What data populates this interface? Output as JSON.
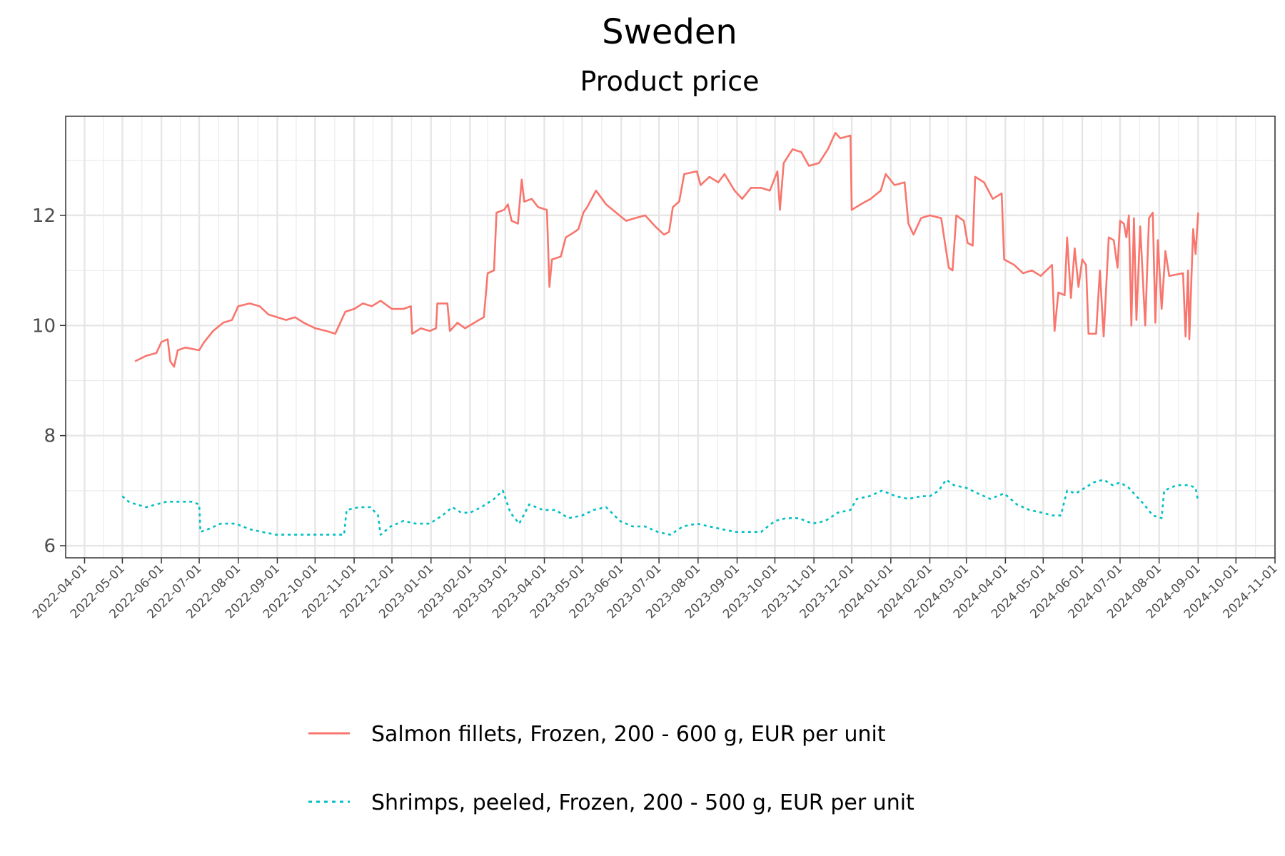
{
  "chart_data": {
    "type": "line",
    "title": "Sweden",
    "subtitle": "Product price",
    "xlabel": "",
    "ylabel": "",
    "x_ticks": [
      "2022-04-01",
      "2022-05-01",
      "2022-06-01",
      "2022-07-01",
      "2022-08-01",
      "2022-09-01",
      "2022-10-01",
      "2022-11-01",
      "2022-12-01",
      "2023-01-01",
      "2023-02-01",
      "2023-03-01",
      "2023-04-01",
      "2023-05-01",
      "2023-06-01",
      "2023-07-01",
      "2023-08-01",
      "2023-09-01",
      "2023-10-01",
      "2023-11-01",
      "2023-12-01",
      "2024-01-01",
      "2024-02-01",
      "2024-03-01",
      "2024-04-01",
      "2024-05-01",
      "2024-06-01",
      "2024-07-01",
      "2024-08-01",
      "2024-09-01",
      "2024-10-01",
      "2024-11-01"
    ],
    "y_ticks": [
      "6",
      "8",
      "10",
      "12"
    ],
    "xlim": [
      "2022-03-17",
      "2024-11-01"
    ],
    "ylim": [
      5.78,
      13.8
    ],
    "grid": true,
    "legend_position": "bottom",
    "series": [
      {
        "name": "Salmon fillets, Frozen, 200 - 600 g, EUR per unit",
        "color": "#F8766D",
        "dash": "solid",
        "points": [
          [
            "2022-05-11",
            9.35
          ],
          [
            "2022-05-20",
            9.45
          ],
          [
            "2022-05-28",
            9.5
          ],
          [
            "2022-06-01",
            9.7
          ],
          [
            "2022-06-06",
            9.75
          ],
          [
            "2022-06-08",
            9.35
          ],
          [
            "2022-06-11",
            9.25
          ],
          [
            "2022-06-14",
            9.55
          ],
          [
            "2022-06-20",
            9.6
          ],
          [
            "2022-07-01",
            9.55
          ],
          [
            "2022-07-05",
            9.7
          ],
          [
            "2022-07-12",
            9.9
          ],
          [
            "2022-07-20",
            10.05
          ],
          [
            "2022-07-27",
            10.1
          ],
          [
            "2022-08-01",
            10.35
          ],
          [
            "2022-08-10",
            10.4
          ],
          [
            "2022-08-18",
            10.35
          ],
          [
            "2022-08-25",
            10.2
          ],
          [
            "2022-09-01",
            10.15
          ],
          [
            "2022-09-08",
            10.1
          ],
          [
            "2022-09-15",
            10.15
          ],
          [
            "2022-09-22",
            10.05
          ],
          [
            "2022-10-01",
            9.95
          ],
          [
            "2022-10-10",
            9.9
          ],
          [
            "2022-10-17",
            9.85
          ],
          [
            "2022-10-25",
            10.25
          ],
          [
            "2022-11-01",
            10.3
          ],
          [
            "2022-11-08",
            10.4
          ],
          [
            "2022-11-15",
            10.35
          ],
          [
            "2022-11-22",
            10.45
          ],
          [
            "2022-12-01",
            10.3
          ],
          [
            "2022-12-10",
            10.3
          ],
          [
            "2022-12-16",
            10.35
          ],
          [
            "2022-12-17",
            9.85
          ],
          [
            "2022-12-24",
            9.95
          ],
          [
            "2022-12-31",
            9.9
          ],
          [
            "2023-01-05",
            9.95
          ],
          [
            "2023-01-06",
            10.4
          ],
          [
            "2023-01-14",
            10.4
          ],
          [
            "2023-01-16",
            9.9
          ],
          [
            "2023-01-22",
            10.05
          ],
          [
            "2023-01-28",
            9.95
          ],
          [
            "2023-02-08",
            10.1
          ],
          [
            "2023-02-12",
            10.15
          ],
          [
            "2023-02-15",
            10.95
          ],
          [
            "2023-02-20",
            11.0
          ],
          [
            "2023-02-22",
            12.05
          ],
          [
            "2023-02-28",
            12.1
          ],
          [
            "2023-03-03",
            12.2
          ],
          [
            "2023-03-06",
            11.9
          ],
          [
            "2023-03-11",
            11.85
          ],
          [
            "2023-03-14",
            12.65
          ],
          [
            "2023-03-16",
            12.25
          ],
          [
            "2023-03-22",
            12.3
          ],
          [
            "2023-03-27",
            12.15
          ],
          [
            "2023-04-03",
            12.1
          ],
          [
            "2023-04-05",
            10.7
          ],
          [
            "2023-04-07",
            11.2
          ],
          [
            "2023-04-14",
            11.25
          ],
          [
            "2023-04-18",
            11.6
          ],
          [
            "2023-04-25",
            11.7
          ],
          [
            "2023-04-28",
            11.75
          ],
          [
            "2023-05-02",
            12.05
          ],
          [
            "2023-05-05",
            12.15
          ],
          [
            "2023-05-12",
            12.45
          ],
          [
            "2023-05-20",
            12.2
          ],
          [
            "2023-05-28",
            12.05
          ],
          [
            "2023-06-05",
            11.9
          ],
          [
            "2023-06-12",
            11.95
          ],
          [
            "2023-06-20",
            12.0
          ],
          [
            "2023-06-28",
            11.8
          ],
          [
            "2023-07-05",
            11.65
          ],
          [
            "2023-07-09",
            11.7
          ],
          [
            "2023-07-12",
            12.15
          ],
          [
            "2023-07-17",
            12.25
          ],
          [
            "2023-07-21",
            12.75
          ],
          [
            "2023-07-31",
            12.8
          ],
          [
            "2023-08-03",
            12.55
          ],
          [
            "2023-08-10",
            12.7
          ],
          [
            "2023-08-17",
            12.6
          ],
          [
            "2023-08-22",
            12.75
          ],
          [
            "2023-08-30",
            12.45
          ],
          [
            "2023-09-05",
            12.3
          ],
          [
            "2023-09-12",
            12.5
          ],
          [
            "2023-09-20",
            12.5
          ],
          [
            "2023-09-27",
            12.45
          ],
          [
            "2023-10-03",
            12.8
          ],
          [
            "2023-10-05",
            12.1
          ],
          [
            "2023-10-08",
            12.95
          ],
          [
            "2023-10-15",
            13.2
          ],
          [
            "2023-10-22",
            13.15
          ],
          [
            "2023-10-28",
            12.9
          ],
          [
            "2023-11-05",
            12.95
          ],
          [
            "2023-11-12",
            13.2
          ],
          [
            "2023-11-18",
            13.5
          ],
          [
            "2023-11-22",
            13.4
          ],
          [
            "2023-11-30",
            13.45
          ],
          [
            "2023-12-01",
            12.1
          ],
          [
            "2023-12-08",
            12.2
          ],
          [
            "2023-12-16",
            12.3
          ],
          [
            "2023-12-24",
            12.45
          ],
          [
            "2023-12-28",
            12.75
          ],
          [
            "2024-01-04",
            12.55
          ],
          [
            "2024-01-12",
            12.6
          ],
          [
            "2024-01-15",
            11.85
          ],
          [
            "2024-01-19",
            11.65
          ],
          [
            "2024-01-25",
            11.95
          ],
          [
            "2024-02-01",
            12.0
          ],
          [
            "2024-02-10",
            11.95
          ],
          [
            "2024-02-16",
            11.05
          ],
          [
            "2024-02-19",
            11.0
          ],
          [
            "2024-02-22",
            12.0
          ],
          [
            "2024-02-28",
            11.9
          ],
          [
            "2024-03-02",
            11.5
          ],
          [
            "2024-03-06",
            11.45
          ],
          [
            "2024-03-08",
            12.7
          ],
          [
            "2024-03-15",
            12.6
          ],
          [
            "2024-03-22",
            12.3
          ],
          [
            "2024-03-29",
            12.4
          ],
          [
            "2024-03-31",
            11.2
          ],
          [
            "2024-04-08",
            11.1
          ],
          [
            "2024-04-15",
            10.95
          ],
          [
            "2024-04-22",
            11.0
          ],
          [
            "2024-04-29",
            10.9
          ],
          [
            "2024-05-08",
            11.1
          ],
          [
            "2024-05-10",
            9.9
          ],
          [
            "2024-05-13",
            10.6
          ],
          [
            "2024-05-18",
            10.55
          ],
          [
            "2024-05-20",
            11.6
          ],
          [
            "2024-05-23",
            10.5
          ],
          [
            "2024-05-26",
            11.4
          ],
          [
            "2024-05-29",
            10.7
          ],
          [
            "2024-06-01",
            11.2
          ],
          [
            "2024-06-04",
            11.1
          ],
          [
            "2024-06-06",
            9.85
          ],
          [
            "2024-06-12",
            9.85
          ],
          [
            "2024-06-15",
            11.0
          ],
          [
            "2024-06-18",
            9.8
          ],
          [
            "2024-06-22",
            11.6
          ],
          [
            "2024-06-26",
            11.55
          ],
          [
            "2024-06-29",
            11.05
          ],
          [
            "2024-07-01",
            11.9
          ],
          [
            "2024-07-04",
            11.85
          ],
          [
            "2024-07-06",
            11.6
          ],
          [
            "2024-07-08",
            12.0
          ],
          [
            "2024-07-10",
            10.0
          ],
          [
            "2024-07-12",
            11.95
          ],
          [
            "2024-07-14",
            10.1
          ],
          [
            "2024-07-17",
            11.8
          ],
          [
            "2024-07-21",
            10.0
          ],
          [
            "2024-07-24",
            11.95
          ],
          [
            "2024-07-27",
            12.05
          ],
          [
            "2024-07-29",
            10.05
          ],
          [
            "2024-07-31",
            11.55
          ],
          [
            "2024-08-03",
            10.3
          ],
          [
            "2024-08-06",
            11.35
          ],
          [
            "2024-08-09",
            10.9
          ],
          [
            "2024-08-20",
            10.95
          ],
          [
            "2024-08-22",
            9.8
          ],
          [
            "2024-08-24",
            11.0
          ],
          [
            "2024-08-25",
            9.75
          ],
          [
            "2024-08-28",
            11.75
          ],
          [
            "2024-08-30",
            11.3
          ],
          [
            "2024-09-01",
            12.05
          ]
        ]
      },
      {
        "name": "Shrimps, peeled, Frozen, 200 - 500 g, EUR per unit",
        "color": "#00BFC4",
        "dash": "dotted",
        "points": [
          [
            "2022-05-01",
            6.9
          ],
          [
            "2022-05-06",
            6.8
          ],
          [
            "2022-05-12",
            6.75
          ],
          [
            "2022-05-20",
            6.7
          ],
          [
            "2022-05-28",
            6.75
          ],
          [
            "2022-06-05",
            6.8
          ],
          [
            "2022-06-15",
            6.8
          ],
          [
            "2022-06-25",
            6.8
          ],
          [
            "2022-07-01",
            6.75
          ],
          [
            "2022-07-02",
            6.25
          ],
          [
            "2022-07-08",
            6.3
          ],
          [
            "2022-07-18",
            6.4
          ],
          [
            "2022-07-30",
            6.4
          ],
          [
            "2022-08-10",
            6.3
          ],
          [
            "2022-08-20",
            6.25
          ],
          [
            "2022-08-31",
            6.2
          ],
          [
            "2022-09-10",
            6.2
          ],
          [
            "2022-09-20",
            6.2
          ],
          [
            "2022-10-01",
            6.2
          ],
          [
            "2022-10-12",
            6.2
          ],
          [
            "2022-10-24",
            6.2
          ],
          [
            "2022-10-26",
            6.65
          ],
          [
            "2022-11-05",
            6.7
          ],
          [
            "2022-11-14",
            6.7
          ],
          [
            "2022-11-20",
            6.55
          ],
          [
            "2022-11-22",
            6.2
          ],
          [
            "2022-11-30",
            6.35
          ],
          [
            "2022-12-10",
            6.45
          ],
          [
            "2022-12-20",
            6.4
          ],
          [
            "2022-12-31",
            6.4
          ],
          [
            "2023-01-10",
            6.55
          ],
          [
            "2023-01-18",
            6.7
          ],
          [
            "2023-01-25",
            6.6
          ],
          [
            "2023-02-01",
            6.6
          ],
          [
            "2023-02-10",
            6.7
          ],
          [
            "2023-02-20",
            6.85
          ],
          [
            "2023-02-27",
            7.0
          ],
          [
            "2023-03-05",
            6.6
          ],
          [
            "2023-03-12",
            6.4
          ],
          [
            "2023-03-20",
            6.75
          ],
          [
            "2023-03-31",
            6.65
          ],
          [
            "2023-04-10",
            6.65
          ],
          [
            "2023-04-20",
            6.5
          ],
          [
            "2023-05-01",
            6.55
          ],
          [
            "2023-05-10",
            6.65
          ],
          [
            "2023-05-20",
            6.7
          ],
          [
            "2023-05-31",
            6.45
          ],
          [
            "2023-06-10",
            6.35
          ],
          [
            "2023-06-20",
            6.35
          ],
          [
            "2023-06-30",
            6.25
          ],
          [
            "2023-07-10",
            6.2
          ],
          [
            "2023-07-20",
            6.35
          ],
          [
            "2023-07-31",
            6.4
          ],
          [
            "2023-08-10",
            6.35
          ],
          [
            "2023-08-20",
            6.3
          ],
          [
            "2023-08-31",
            6.25
          ],
          [
            "2023-09-10",
            6.25
          ],
          [
            "2023-09-20",
            6.25
          ],
          [
            "2023-10-01",
            6.45
          ],
          [
            "2023-10-10",
            6.5
          ],
          [
            "2023-10-20",
            6.5
          ],
          [
            "2023-10-31",
            6.4
          ],
          [
            "2023-11-10",
            6.45
          ],
          [
            "2023-11-20",
            6.6
          ],
          [
            "2023-11-30",
            6.65
          ],
          [
            "2023-12-05",
            6.85
          ],
          [
            "2023-12-15",
            6.9
          ],
          [
            "2023-12-25",
            7.0
          ],
          [
            "2024-01-05",
            6.9
          ],
          [
            "2024-01-15",
            6.85
          ],
          [
            "2024-01-25",
            6.9
          ],
          [
            "2024-02-01",
            6.9
          ],
          [
            "2024-02-08",
            7.0
          ],
          [
            "2024-02-14",
            7.2
          ],
          [
            "2024-02-20",
            7.1
          ],
          [
            "2024-03-01",
            7.05
          ],
          [
            "2024-03-10",
            6.95
          ],
          [
            "2024-03-20",
            6.85
          ],
          [
            "2024-03-31",
            6.95
          ],
          [
            "2024-04-10",
            6.75
          ],
          [
            "2024-04-20",
            6.65
          ],
          [
            "2024-04-30",
            6.6
          ],
          [
            "2024-05-08",
            6.55
          ],
          [
            "2024-05-15",
            6.55
          ],
          [
            "2024-05-20",
            7.0
          ],
          [
            "2024-05-27",
            6.95
          ],
          [
            "2024-06-03",
            7.05
          ],
          [
            "2024-06-10",
            7.15
          ],
          [
            "2024-06-18",
            7.2
          ],
          [
            "2024-06-25",
            7.1
          ],
          [
            "2024-07-01",
            7.15
          ],
          [
            "2024-07-08",
            7.05
          ],
          [
            "2024-07-14",
            6.9
          ],
          [
            "2024-07-20",
            6.75
          ],
          [
            "2024-07-27",
            6.55
          ],
          [
            "2024-08-03",
            6.5
          ],
          [
            "2024-08-05",
            7.0
          ],
          [
            "2024-08-15",
            7.1
          ],
          [
            "2024-08-25",
            7.1
          ],
          [
            "2024-08-30",
            7.05
          ],
          [
            "2024-09-01",
            6.8
          ]
        ]
      }
    ]
  }
}
